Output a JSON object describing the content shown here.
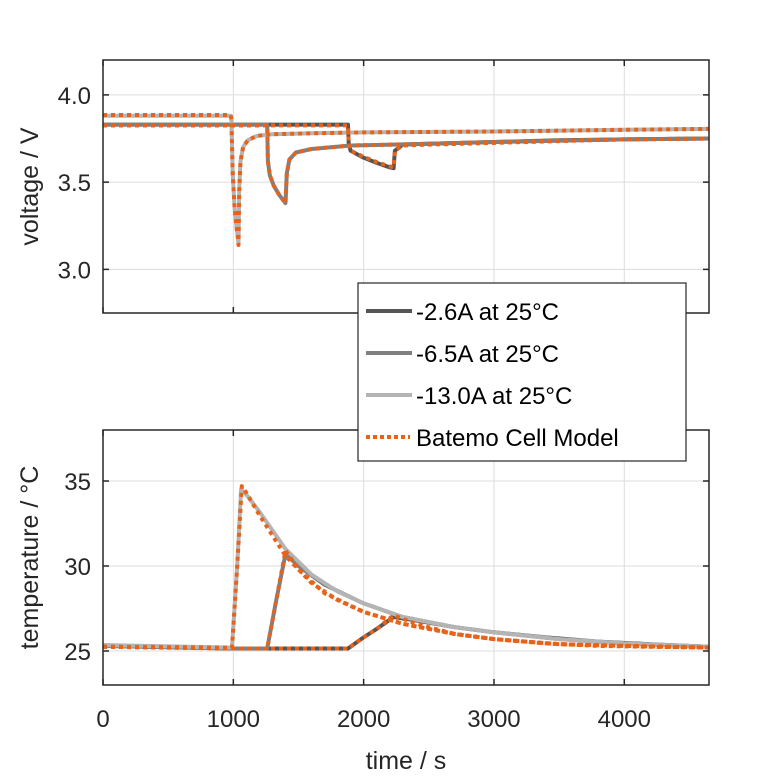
{
  "chart_data": [
    {
      "type": "line",
      "title": "",
      "xlabel": "",
      "ylabel": "voltage / V",
      "xlim": [
        0,
        4650
      ],
      "ylim": [
        2.75,
        4.2
      ],
      "yticks": [
        3.0,
        3.5,
        4.0
      ],
      "ytick_labels": [
        "3.0",
        "3.5",
        "4.0"
      ],
      "xticks": [
        0,
        1000,
        2000,
        3000,
        4000
      ],
      "show_xtick_labels": false,
      "grid": true,
      "series": [
        {
          "name": "-2.6A at 25°C",
          "color": "#555555",
          "style": "solid",
          "x": [
            0,
            1000,
            1880,
            1885,
            1900,
            2000,
            2100,
            2200,
            2230,
            2240,
            2300,
            2500,
            3000,
            3500,
            4000,
            4650
          ],
          "y": [
            3.83,
            3.83,
            3.83,
            3.72,
            3.68,
            3.64,
            3.61,
            3.585,
            3.58,
            3.68,
            3.715,
            3.72,
            3.73,
            3.74,
            3.745,
            3.75
          ]
        },
        {
          "name": "-6.5A at 25°C",
          "color": "#808080",
          "style": "solid",
          "x": [
            0,
            1000,
            1260,
            1265,
            1280,
            1310,
            1350,
            1390,
            1400,
            1410,
            1430,
            1480,
            1600,
            1900,
            2500,
            3000,
            4000,
            4650
          ],
          "y": [
            3.83,
            3.83,
            3.83,
            3.62,
            3.54,
            3.48,
            3.43,
            3.39,
            3.38,
            3.55,
            3.63,
            3.67,
            3.69,
            3.71,
            3.72,
            3.73,
            3.745,
            3.75
          ]
        },
        {
          "name": "-13.0A at 25°C",
          "color": "#b4b4b4",
          "style": "solid",
          "x": [
            0,
            980,
            985,
            995,
            1010,
            1025,
            1035,
            1040,
            1045,
            1055,
            1075,
            1110,
            1180,
            1300,
            1600,
            2000,
            3000,
            4000,
            4650
          ],
          "y": [
            3.88,
            3.88,
            3.86,
            3.55,
            3.35,
            3.24,
            3.18,
            3.15,
            3.45,
            3.62,
            3.7,
            3.74,
            3.765,
            3.775,
            3.78,
            3.785,
            3.79,
            3.8,
            3.805
          ]
        },
        {
          "name": "Batemo Cell Model",
          "color": "#e8631a",
          "style": "dotted",
          "sub_series": [
            {
              "x": [
                0,
                980,
                985,
                995,
                1010,
                1025,
                1035,
                1040,
                1045,
                1055,
                1075,
                1110,
                1180,
                1300,
                1600,
                2000,
                3000,
                4000,
                4650
              ],
              "y": [
                3.885,
                3.885,
                3.86,
                3.55,
                3.35,
                3.24,
                3.18,
                3.14,
                3.45,
                3.62,
                3.7,
                3.74,
                3.765,
                3.775,
                3.78,
                3.785,
                3.79,
                3.8,
                3.805
              ]
            },
            {
              "x": [
                0,
                1000,
                1260,
                1265,
                1280,
                1310,
                1350,
                1390,
                1400,
                1410,
                1430,
                1480,
                1600,
                1900,
                2500,
                3000,
                4000,
                4650
              ],
              "y": [
                3.825,
                3.825,
                3.825,
                3.62,
                3.54,
                3.48,
                3.43,
                3.39,
                3.38,
                3.55,
                3.63,
                3.67,
                3.69,
                3.71,
                3.72,
                3.73,
                3.745,
                3.75
              ]
            },
            {
              "x": [
                0,
                1000,
                1880,
                1885,
                1900,
                2000,
                2100,
                2200,
                2230,
                2240,
                2300,
                2500,
                3000,
                3500,
                4000,
                4650
              ],
              "y": [
                3.825,
                3.825,
                3.825,
                3.72,
                3.68,
                3.645,
                3.615,
                3.59,
                3.585,
                3.68,
                3.71,
                3.715,
                3.725,
                3.735,
                3.745,
                3.75
              ]
            }
          ]
        }
      ]
    },
    {
      "type": "line",
      "title": "",
      "xlabel": "time / s",
      "ylabel": "temperature / °C",
      "xlim": [
        0,
        4650
      ],
      "ylim": [
        23,
        38
      ],
      "yticks": [
        25,
        30,
        35
      ],
      "ytick_labels": [
        "25",
        "30",
        "35"
      ],
      "xticks": [
        0,
        1000,
        2000,
        3000,
        4000
      ],
      "xtick_labels": [
        "0",
        "1000",
        "2000",
        "3000",
        "4000"
      ],
      "grid": true,
      "series": [
        {
          "name": "-2.6A at 25°C",
          "color": "#555555",
          "style": "solid",
          "x": [
            0,
            1000,
            1880,
            2000,
            2100,
            2230,
            2400,
            2700,
            3000,
            3400,
            3800,
            4200,
            4650
          ],
          "y": [
            25.3,
            25.15,
            25.15,
            25.8,
            26.3,
            27.0,
            26.8,
            26.4,
            26.1,
            25.8,
            25.55,
            25.4,
            25.25
          ]
        },
        {
          "name": "-6.5A at 25°C",
          "color": "#808080",
          "style": "solid",
          "x": [
            0,
            1000,
            1260,
            1330,
            1400,
            1500,
            1700,
            2000,
            2300,
            2700,
            3000,
            3500,
            4000,
            4650
          ],
          "y": [
            25.3,
            25.15,
            25.15,
            28.0,
            30.7,
            30.0,
            28.9,
            27.8,
            27.0,
            26.4,
            26.1,
            25.7,
            25.45,
            25.25
          ]
        },
        {
          "name": "-13.0A at 25°C",
          "color": "#b4b4b4",
          "style": "solid",
          "x": [
            0,
            990,
            1030,
            1060,
            1100,
            1200,
            1400,
            1600,
            1800,
            2000,
            2300,
            2700,
            3000,
            3500,
            4000,
            4650
          ],
          "y": [
            25.35,
            25.2,
            30.0,
            34.5,
            34.2,
            33.2,
            31.0,
            29.5,
            28.5,
            27.8,
            27.0,
            26.4,
            26.1,
            25.7,
            25.45,
            25.25
          ]
        },
        {
          "name": "Batemo Cell Model",
          "color": "#e8631a",
          "style": "dotted",
          "sub_series": [
            {
              "x": [
                0,
                990,
                1030,
                1065,
                1100,
                1200,
                1400,
                1600,
                1800,
                2000,
                2300,
                2700,
                3000,
                3500,
                4000,
                4650
              ],
              "y": [
                25.25,
                25.2,
                30.0,
                34.7,
                34.3,
                33.0,
                30.6,
                29.0,
                28.0,
                27.3,
                26.6,
                26.0,
                25.7,
                25.4,
                25.3,
                25.2
              ]
            },
            {
              "x": [
                0,
                1000,
                1260,
                1330,
                1400,
                1500,
                1700,
                2000,
                2300,
                2700,
                3000,
                3500,
                4000,
                4650
              ],
              "y": [
                25.25,
                25.15,
                25.15,
                28.0,
                30.9,
                29.8,
                28.4,
                27.3,
                26.6,
                26.0,
                25.7,
                25.4,
                25.3,
                25.2
              ]
            },
            {
              "x": [
                0,
                1000,
                1880,
                2000,
                2100,
                2230,
                2400,
                2700,
                3000,
                3400,
                3800,
                4200,
                4650
              ],
              "y": [
                25.25,
                25.15,
                25.15,
                25.8,
                26.3,
                27.1,
                26.6,
                26.0,
                25.7,
                25.45,
                25.3,
                25.25,
                25.2
              ]
            }
          ]
        }
      ]
    }
  ],
  "legend": {
    "placement": "center-right",
    "entries": [
      {
        "label": "-2.6A at 25°C",
        "color": "#555555",
        "style": "solid"
      },
      {
        "label": "-6.5A at 25°C",
        "color": "#808080",
        "style": "solid"
      },
      {
        "label": "-13.0A at 25°C",
        "color": "#b4b4b4",
        "style": "solid"
      },
      {
        "label": "Batemo Cell Model",
        "color": "#e8631a",
        "style": "dotted"
      }
    ]
  }
}
